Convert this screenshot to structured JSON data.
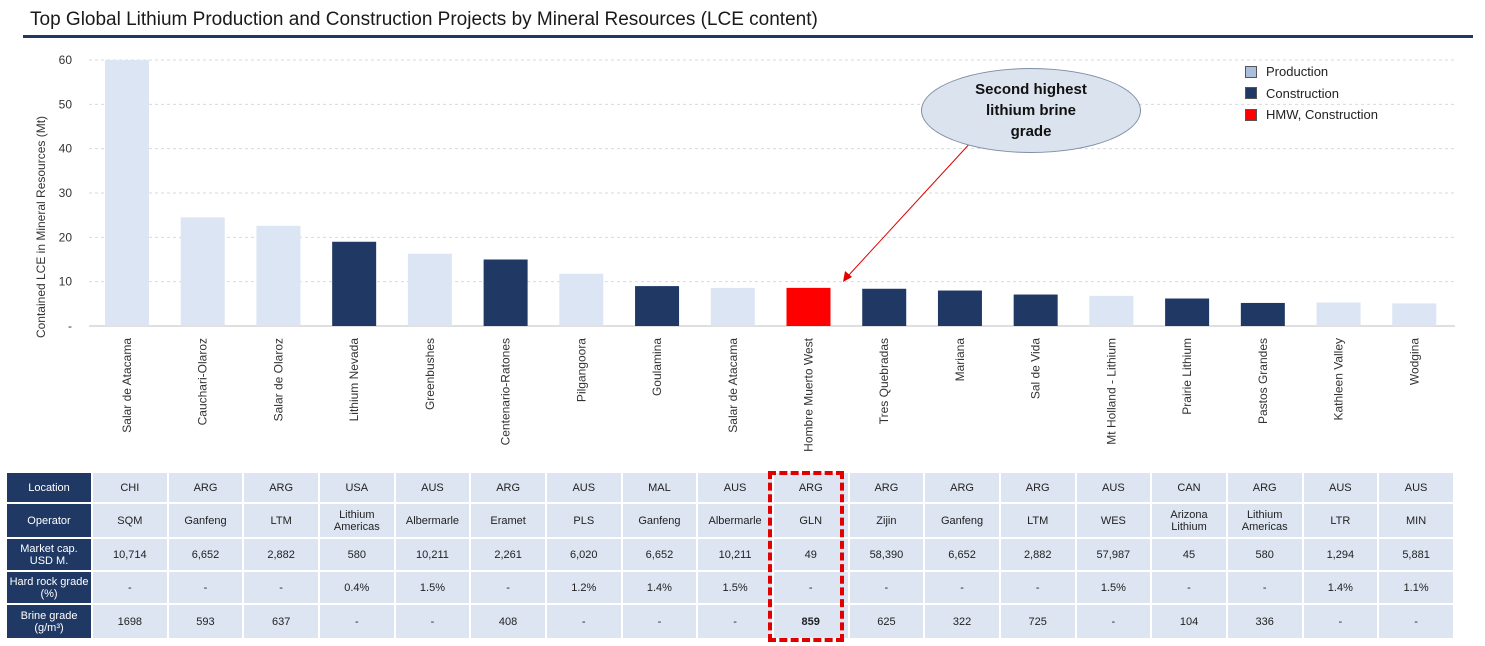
{
  "title": "Top Global Lithium Production and Construction Projects by Mineral Resources (LCE content)",
  "colors": {
    "production": "#dbe5f3",
    "construction": "#1f3864",
    "hmw": "#ff0000",
    "accent": "#1f3864",
    "callout_fill": "#dbe3ee"
  },
  "legend": [
    {
      "label": "Production",
      "color": "#a9bfdc"
    },
    {
      "label": "Construction",
      "color": "#1f3864"
    },
    {
      "label": "HMW, Construction",
      "color": "#ff0000"
    }
  ],
  "callout": {
    "text": "Second highest lithium brine grade"
  },
  "chart_data": {
    "type": "bar",
    "title": "Top Global Lithium Production and Construction Projects by Mineral Resources (LCE content)",
    "ylabel": "Contained LCE  in Mineral Resources (Mt)",
    "xlabel": "",
    "ylim": [
      0,
      60
    ],
    "yticks": [
      0,
      10,
      20,
      30,
      40,
      50,
      60
    ],
    "ytick_labels": [
      "-",
      "10",
      "20",
      "30",
      "40",
      "50",
      "60"
    ],
    "grid": true,
    "categories": [
      "Salar de Atacama",
      "Cauchari-Olaroz",
      "Salar de Olaroz",
      "Lithium Nevada",
      "Greenbushes",
      "Centenario-Ratones",
      "Pilgangoora",
      "Goulamina",
      "Salar de Atacama",
      "Hombre Muerto West",
      "Tres Quebradas",
      "Mariana",
      "Sal de Vida",
      "Mt Holland - Lithium",
      "Prairie Lithium",
      "Pastos Grandes",
      "Kathleen Valley",
      "Wodgina"
    ],
    "values": [
      60.0,
      24.5,
      22.6,
      19.0,
      16.3,
      15.0,
      11.8,
      9.0,
      8.6,
      8.6,
      8.4,
      8.0,
      7.1,
      6.8,
      6.2,
      5.2,
      5.3,
      5.1
    ],
    "status": [
      "production",
      "production",
      "production",
      "construction",
      "production",
      "construction",
      "production",
      "construction",
      "production",
      "hmw",
      "construction",
      "construction",
      "construction",
      "production",
      "construction",
      "construction",
      "production",
      "production"
    ]
  },
  "table": {
    "rows": [
      {
        "label": "Location",
        "cells": [
          "CHI",
          "ARG",
          "ARG",
          "USA",
          "AUS",
          "ARG",
          "AUS",
          "MAL",
          "AUS",
          "ARG",
          "ARG",
          "ARG",
          "ARG",
          "AUS",
          "CAN",
          "ARG",
          "AUS",
          "AUS"
        ]
      },
      {
        "label": "Operator",
        "cells": [
          "SQM",
          "Ganfeng",
          "LTM",
          "Lithium Americas",
          "Albermarle",
          "Eramet",
          "PLS",
          "Ganfeng",
          "Albermarle",
          "GLN",
          "Zijin",
          "Ganfeng",
          "LTM",
          "WES",
          "Arizona Lithium",
          "Lithium Americas",
          "LTR",
          "MIN"
        ]
      },
      {
        "label": "Market cap. USD M.",
        "cells": [
          "10,714",
          "6,652",
          "2,882",
          "580",
          "10,211",
          "2,261",
          "6,020",
          "6,652",
          "10,211",
          "49",
          "58,390",
          "6,652",
          "2,882",
          "57,987",
          "45",
          "580",
          "1,294",
          "5,881"
        ]
      },
      {
        "label": "Hard rock grade (%)",
        "cells": [
          "-",
          "-",
          "-",
          "0.4%",
          "1.5%",
          "-",
          "1.2%",
          "1.4%",
          "1.5%",
          "-",
          "-",
          "-",
          "-",
          "1.5%",
          "-",
          "-",
          "1.4%",
          "1.1%"
        ]
      },
      {
        "label": "Brine grade (g/m³)",
        "cells": [
          "1698",
          "593",
          "637",
          "-",
          "-",
          "408",
          "-",
          "-",
          "-",
          "859",
          "625",
          "322",
          "725",
          "-",
          "104",
          "336",
          "-",
          "-"
        ]
      }
    ]
  }
}
